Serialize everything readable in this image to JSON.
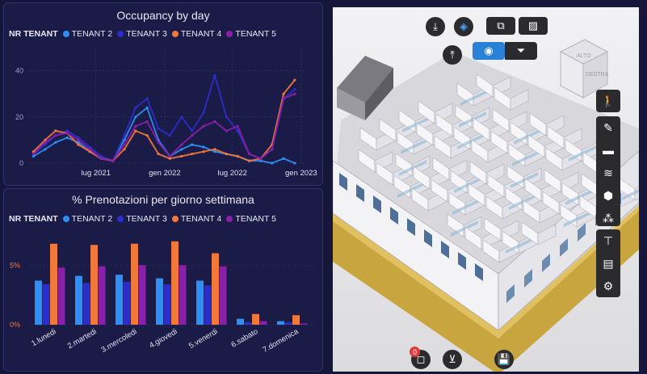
{
  "occupancy": {
    "title": "Occupancy by day",
    "legend_title": "NR TENANT",
    "chart_data": {
      "type": "line",
      "title": "Occupancy by day",
      "legend_title": "NR TENANT",
      "ylim": [
        0,
        50
      ],
      "yticks": [
        0,
        20,
        40
      ],
      "xlim": [
        "2021-01-01",
        "2023-01-10"
      ],
      "xticks": [
        {
          "date": "2021-07-01",
          "label": "lug 2021"
        },
        {
          "date": "2022-01-01",
          "label": "gen 2022"
        },
        {
          "date": "2022-07-01",
          "label": "lug 2022"
        },
        {
          "date": "2023-01-01",
          "label": "gen 2023"
        }
      ],
      "grid": true,
      "legend_position": "top",
      "series": [
        {
          "name": "TENANT 2",
          "color": "#2f8ff2",
          "points": [
            [
              "2021-01-15",
              3
            ],
            [
              "2021-02-15",
              6
            ],
            [
              "2021-03-15",
              9
            ],
            [
              "2021-04-15",
              11
            ],
            [
              "2021-05-15",
              9
            ],
            [
              "2021-06-15",
              5
            ],
            [
              "2021-07-15",
              2
            ],
            [
              "2021-08-15",
              1
            ],
            [
              "2021-09-15",
              10
            ],
            [
              "2021-10-15",
              20
            ],
            [
              "2021-11-15",
              24
            ],
            [
              "2021-12-15",
              10
            ],
            [
              "2022-01-15",
              3
            ],
            [
              "2022-02-15",
              6
            ],
            [
              "2022-03-15",
              8
            ],
            [
              "2022-04-15",
              7
            ],
            [
              "2022-05-15",
              5
            ],
            [
              "2022-06-15",
              4
            ],
            [
              "2022-07-15",
              3
            ],
            [
              "2022-08-15",
              1
            ],
            [
              "2022-09-15",
              1
            ],
            [
              "2022-10-15",
              0
            ],
            [
              "2022-11-15",
              2
            ],
            [
              "2022-12-15",
              0
            ]
          ]
        },
        {
          "name": "TENANT 3",
          "color": "#2a2fc9",
          "points": [
            [
              "2021-01-15",
              4
            ],
            [
              "2021-02-15",
              8
            ],
            [
              "2021-03-15",
              12
            ],
            [
              "2021-04-15",
              14
            ],
            [
              "2021-05-15",
              11
            ],
            [
              "2021-06-15",
              7
            ],
            [
              "2021-07-15",
              3
            ],
            [
              "2021-08-15",
              1
            ],
            [
              "2021-09-15",
              12
            ],
            [
              "2021-10-15",
              24
            ],
            [
              "2021-11-15",
              28
            ],
            [
              "2021-12-15",
              15
            ],
            [
              "2022-01-15",
              12
            ],
            [
              "2022-02-15",
              20
            ],
            [
              "2022-03-15",
              14
            ],
            [
              "2022-04-15",
              22
            ],
            [
              "2022-05-15",
              38
            ],
            [
              "2022-06-15",
              20
            ],
            [
              "2022-07-15",
              14
            ],
            [
              "2022-08-15",
              4
            ],
            [
              "2022-09-15",
              2
            ],
            [
              "2022-10-15",
              6
            ],
            [
              "2022-11-15",
              28
            ],
            [
              "2022-12-15",
              32
            ]
          ]
        },
        {
          "name": "TENANT 4",
          "color": "#f0783a",
          "points": [
            [
              "2021-01-15",
              5
            ],
            [
              "2021-02-15",
              10
            ],
            [
              "2021-03-15",
              14
            ],
            [
              "2021-04-15",
              13
            ],
            [
              "2021-05-15",
              8
            ],
            [
              "2021-06-15",
              5
            ],
            [
              "2021-07-15",
              2
            ],
            [
              "2021-08-15",
              1
            ],
            [
              "2021-09-15",
              6
            ],
            [
              "2021-10-15",
              14
            ],
            [
              "2021-11-15",
              12
            ],
            [
              "2021-12-15",
              4
            ],
            [
              "2022-01-15",
              2
            ],
            [
              "2022-02-15",
              3
            ],
            [
              "2022-03-15",
              4
            ],
            [
              "2022-04-15",
              5
            ],
            [
              "2022-05-15",
              6
            ],
            [
              "2022-06-15",
              4
            ],
            [
              "2022-07-15",
              3
            ],
            [
              "2022-08-15",
              1
            ],
            [
              "2022-09-15",
              2
            ],
            [
              "2022-10-15",
              8
            ],
            [
              "2022-11-15",
              30
            ],
            [
              "2022-12-15",
              36
            ]
          ]
        },
        {
          "name": "TENANT 5",
          "color": "#8a1faa",
          "points": [
            [
              "2021-01-15",
              4
            ],
            [
              "2021-02-15",
              9
            ],
            [
              "2021-03-15",
              12
            ],
            [
              "2021-04-15",
              13
            ],
            [
              "2021-05-15",
              10
            ],
            [
              "2021-06-15",
              6
            ],
            [
              "2021-07-15",
              2
            ],
            [
              "2021-08-15",
              1
            ],
            [
              "2021-09-15",
              8
            ],
            [
              "2021-10-15",
              16
            ],
            [
              "2021-11-15",
              18
            ],
            [
              "2021-12-15",
              9
            ],
            [
              "2022-01-15",
              3
            ],
            [
              "2022-02-15",
              8
            ],
            [
              "2022-03-15",
              12
            ],
            [
              "2022-04-15",
              16
            ],
            [
              "2022-05-15",
              18
            ],
            [
              "2022-06-15",
              14
            ],
            [
              "2022-07-15",
              16
            ],
            [
              "2022-08-15",
              4
            ],
            [
              "2022-09-15",
              2
            ],
            [
              "2022-10-15",
              6
            ],
            [
              "2022-11-15",
              28
            ],
            [
              "2022-12-15",
              30
            ]
          ]
        }
      ]
    }
  },
  "prenotazioni": {
    "title": "% Prenotazioni per giorno settimana",
    "legend_title": "NR TENANT",
    "chart_data": {
      "type": "bar",
      "title": "% Prenotazioni per giorno settimana",
      "legend_title": "NR TENANT",
      "ylim": [
        0,
        8
      ],
      "yticks": [
        {
          "value": 0,
          "label": "0%"
        },
        {
          "value": 5,
          "label": "5%"
        }
      ],
      "grid": true,
      "legend_position": "top",
      "categories": [
        "1.lunedi",
        "2.martedi",
        "3.mercoledi",
        "4.giovedi",
        "5.venerdi",
        "6.sabato",
        "7.domenica"
      ],
      "series": [
        {
          "name": "TENANT 2",
          "color": "#2f8ff2",
          "values": [
            3.7,
            4.1,
            4.2,
            3.9,
            3.7,
            0.5,
            0.3
          ]
        },
        {
          "name": "TENANT 3",
          "color": "#2a2fc9",
          "values": [
            3.4,
            3.5,
            3.6,
            3.4,
            3.3,
            0.2,
            0.2
          ]
        },
        {
          "name": "TENANT 4",
          "color": "#f0783a",
          "values": [
            6.8,
            6.7,
            6.8,
            7.0,
            6.0,
            0.9,
            0.8
          ]
        },
        {
          "name": "TENANT 5",
          "color": "#8a1faa",
          "values": [
            4.8,
            4.9,
            5.0,
            5.0,
            4.9,
            0.3,
            0.1
          ]
        }
      ]
    }
  },
  "viewer": {
    "nav_cube_top": "ALTO",
    "nav_cube_right": "DESTRA",
    "badge_count": "0",
    "colors": {
      "toolbar": "#2b2b2e",
      "active": "#2a82d8",
      "badge": "#e03b3b",
      "floor": "#d4b04a",
      "walls": "#f4f4f6",
      "glass": "#9fc4dc"
    },
    "toolbar_top": [
      {
        "icon": "download-icon"
      },
      {
        "icon": "orbit-icon"
      },
      {
        "icon": "section-box-icon"
      },
      {
        "icon": "hatch-pattern-icon"
      },
      {
        "icon": "upload-icon"
      },
      {
        "icon": "target-icon"
      },
      {
        "icon": "filter-icon"
      }
    ],
    "sidebar": [
      {
        "icon": "person-icon"
      },
      {
        "icon": "measure-icon"
      },
      {
        "icon": "folder-icon"
      },
      {
        "icon": "layers-icon"
      },
      {
        "icon": "cube-icon"
      },
      {
        "icon": "clusters-icon"
      },
      {
        "icon": "hierarchy-icon"
      },
      {
        "icon": "properties-icon"
      },
      {
        "icon": "settings-icon"
      }
    ],
    "bottom": [
      {
        "icon": "square-icon"
      },
      {
        "icon": "clear-filter-icon"
      },
      {
        "icon": "save-icon"
      }
    ]
  }
}
